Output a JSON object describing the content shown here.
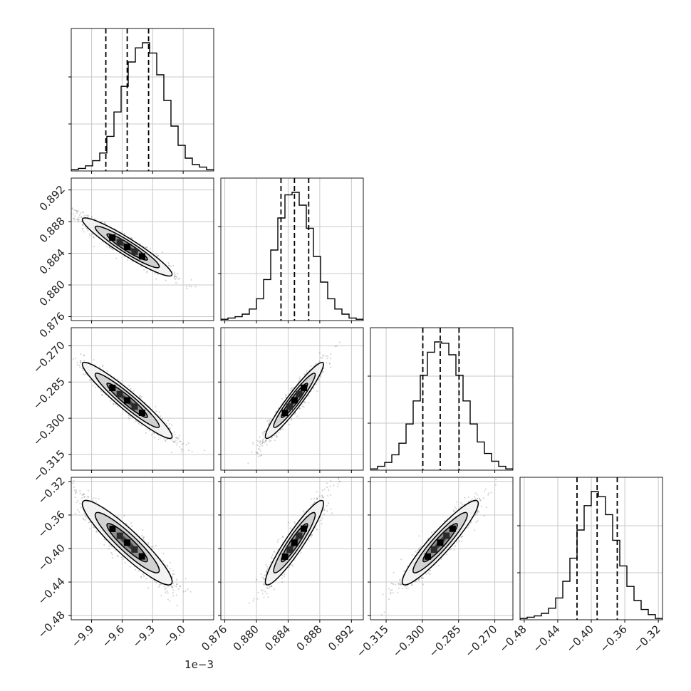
{
  "chart_data": {
    "type": "corner",
    "grid": true,
    "quantiles": [
      0.16,
      0.5,
      0.84
    ],
    "parameters": [
      {
        "index": 0,
        "range": [
          -10.1,
          -8.7
        ],
        "ticks": [
          -9.9,
          -9.6,
          -9.3,
          -9.0
        ],
        "tick_labels": [
          "−9.9",
          "−9.6",
          "−9.3",
          "−9.0"
        ],
        "offset_label": "1e−3",
        "quantile_values": [
          -9.76,
          -9.55,
          -9.34
        ],
        "hist_bins": [
          0.01,
          0.02,
          0.04,
          0.08,
          0.14,
          0.27,
          0.46,
          0.66,
          0.85,
          0.96,
          1.0,
          0.92,
          0.75,
          0.55,
          0.35,
          0.2,
          0.1,
          0.05,
          0.03,
          0.01
        ]
      },
      {
        "index": 1,
        "range": [
          0.8755,
          0.8935
        ],
        "ticks": [
          0.876,
          0.88,
          0.884,
          0.888,
          0.892
        ],
        "tick_labels": [
          "0.876",
          "0.880",
          "0.884",
          "0.888",
          "0.892"
        ],
        "offset_label": "",
        "quantile_values": [
          0.8831,
          0.8848,
          0.8866
        ],
        "hist_bins": [
          0.01,
          0.02,
          0.03,
          0.05,
          0.09,
          0.17,
          0.32,
          0.55,
          0.8,
          0.98,
          1.0,
          0.9,
          0.72,
          0.5,
          0.3,
          0.17,
          0.09,
          0.05,
          0.02,
          0.01
        ]
      },
      {
        "index": 2,
        "range": [
          -0.3215,
          -0.2625
        ],
        "ticks": [
          -0.315,
          -0.3,
          -0.285,
          -0.27
        ],
        "tick_labels": [
          "−0.315",
          "−0.300",
          "−0.285",
          "−0.270"
        ],
        "offset_label": "",
        "quantile_values": [
          -0.2998,
          -0.2926,
          -0.2848
        ],
        "hist_bins": [
          0.01,
          0.03,
          0.06,
          0.12,
          0.21,
          0.36,
          0.54,
          0.74,
          0.92,
          1.0,
          0.99,
          0.9,
          0.74,
          0.54,
          0.36,
          0.22,
          0.13,
          0.07,
          0.03,
          0.01
        ]
      },
      {
        "index": 3,
        "range": [
          -0.485,
          -0.315
        ],
        "ticks": [
          -0.48,
          -0.44,
          -0.4,
          -0.36,
          -0.32
        ],
        "tick_labels": [
          "−0.48",
          "−0.44",
          "−0.40",
          "−0.36",
          "−0.32"
        ],
        "offset_label": "",
        "quantile_values": [
          -0.417,
          -0.393,
          -0.369
        ],
        "hist_bins": [
          0.01,
          0.02,
          0.03,
          0.05,
          0.09,
          0.17,
          0.3,
          0.48,
          0.7,
          0.89,
          1.0,
          0.96,
          0.82,
          0.62,
          0.42,
          0.26,
          0.15,
          0.08,
          0.04,
          0.01
        ]
      }
    ],
    "correlations": [
      [
        1.0,
        -0.94,
        -0.95,
        -0.92
      ],
      [
        -0.94,
        1.0,
        0.95,
        0.93
      ],
      [
        -0.95,
        0.95,
        1.0,
        0.93
      ],
      [
        -0.92,
        0.93,
        0.93,
        1.0
      ]
    ]
  }
}
